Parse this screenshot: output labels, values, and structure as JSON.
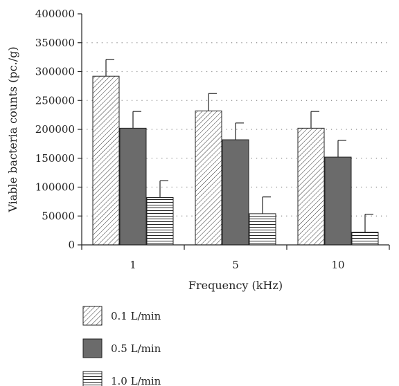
{
  "chart_data": {
    "type": "bar",
    "categories": [
      "1",
      "5",
      "10"
    ],
    "xlabel": "Frequency (kHz)",
    "ylabel": "Viable bacteria counts (pc./g)",
    "ylim": [
      0,
      400000
    ],
    "yticks": [
      "0",
      "50000",
      "100000",
      "150000",
      "200000",
      "250000",
      "300000",
      "350000",
      "400000"
    ],
    "grid": "horizontal dotted",
    "legend_position": "bottom-left",
    "series": [
      {
        "name": "0.1 L/min",
        "values": [
          292000,
          232000,
          202000
        ],
        "errors": [
          29000,
          30000,
          29000
        ],
        "fill": "diagonal-hatch"
      },
      {
        "name": "0.5 L/min",
        "values": [
          202000,
          182000,
          152000
        ],
        "errors": [
          29000,
          29000,
          29000
        ],
        "fill": "#6b6b6b"
      },
      {
        "name": "1.0 L/min",
        "values": [
          82000,
          54000,
          22000
        ],
        "errors": [
          29000,
          29000,
          31000
        ],
        "fill": "horizontal-hatch"
      }
    ]
  }
}
